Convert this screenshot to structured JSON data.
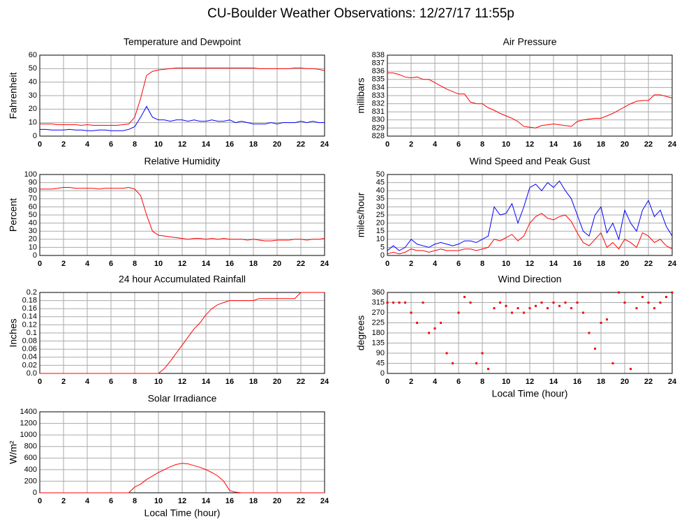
{
  "title": "CU-Boulder Weather Observations: 12/27/17 11:55p",
  "chart_data": [
    {
      "type": "line",
      "title": "Temperature and Dewpoint",
      "ylabel": "Fahrenheit",
      "x": [
        0,
        0.5,
        1,
        1.5,
        2,
        2.5,
        3,
        3.5,
        4,
        4.5,
        5,
        5.5,
        6,
        6.5,
        7,
        7.5,
        8,
        8.5,
        9,
        9.5,
        10,
        10.5,
        11,
        11.5,
        12,
        12.5,
        13,
        13.5,
        14,
        14.5,
        15,
        15.5,
        16,
        16.5,
        17,
        17.5,
        18,
        18.5,
        19,
        19.5,
        20,
        20.5,
        21,
        21.5,
        22,
        22.5,
        23,
        23.5,
        24
      ],
      "series": [
        {
          "color": "#ff0000",
          "values": [
            9,
            9,
            9,
            8.5,
            8.5,
            8.5,
            8.5,
            8,
            8.5,
            8,
            8,
            8,
            8,
            8,
            8.5,
            9,
            14,
            28,
            45,
            48,
            49,
            49.5,
            50,
            50.5,
            50.5,
            50.5,
            50.5,
            50.5,
            50.5,
            50.5,
            50.5,
            50.5,
            50.5,
            50.5,
            50.5,
            50.5,
            50.5,
            50,
            50,
            50,
            50,
            50,
            50,
            50.5,
            50.5,
            50,
            50,
            49.5,
            48.5
          ]
        },
        {
          "color": "#0000ff",
          "values": [
            5,
            5,
            4.5,
            4.5,
            4.5,
            5,
            4.5,
            4.5,
            4,
            4,
            4.5,
            4.5,
            4,
            4,
            4,
            5,
            7,
            14,
            22,
            14,
            12,
            12,
            11,
            12,
            12,
            11,
            12,
            11,
            11,
            12,
            11,
            11,
            12,
            10,
            11,
            10,
            9,
            9,
            9,
            10,
            9,
            10,
            10,
            10,
            11,
            10,
            11,
            10,
            10
          ]
        }
      ],
      "xlim": [
        0,
        24
      ],
      "xticks": [
        0,
        2,
        4,
        6,
        8,
        10,
        12,
        14,
        16,
        18,
        20,
        22,
        24
      ],
      "ylim": [
        0,
        60
      ],
      "yticks": [
        0,
        10,
        20,
        30,
        40,
        50,
        60
      ],
      "grid": true
    },
    {
      "type": "line",
      "title": "Air Pressure",
      "ylabel": "millibars",
      "x": [
        0,
        0.5,
        1,
        1.5,
        2,
        2.5,
        3,
        3.5,
        4,
        4.5,
        5,
        5.5,
        6,
        6.5,
        7,
        7.5,
        8,
        8.5,
        9,
        9.5,
        10,
        10.5,
        11,
        11.5,
        12,
        12.5,
        13,
        13.5,
        14,
        14.5,
        15,
        15.5,
        16,
        16.5,
        17,
        17.5,
        18,
        18.5,
        19,
        19.5,
        20,
        20.5,
        21,
        21.5,
        22,
        22.5,
        23,
        23.5,
        24
      ],
      "series": [
        {
          "color": "#ff0000",
          "values": [
            835.8,
            835.8,
            835.6,
            835.3,
            835.2,
            835.3,
            835,
            835,
            834.6,
            834.2,
            833.8,
            833.5,
            833.2,
            833.2,
            832.2,
            832,
            832,
            831.5,
            831.2,
            830.8,
            830.5,
            830.2,
            829.8,
            829.2,
            829.1,
            829,
            829.3,
            829.4,
            829.5,
            829.4,
            829.3,
            829.2,
            829.8,
            830,
            830.1,
            830.2,
            830.2,
            830.5,
            830.8,
            831.2,
            831.6,
            832,
            832.3,
            832.4,
            832.4,
            833.1,
            833.1,
            832.9,
            832.7
          ]
        }
      ],
      "xlim": [
        0,
        24
      ],
      "xticks": [
        0,
        2,
        4,
        6,
        8,
        10,
        12,
        14,
        16,
        18,
        20,
        22,
        24
      ],
      "ylim": [
        828,
        838
      ],
      "yticks": [
        828,
        829,
        830,
        831,
        832,
        833,
        834,
        835,
        836,
        837,
        838
      ],
      "grid": true
    },
    {
      "type": "line",
      "title": "Relative Humidity",
      "ylabel": "Percent",
      "x": [
        0,
        0.5,
        1,
        1.5,
        2,
        2.5,
        3,
        3.5,
        4,
        4.5,
        5,
        5.5,
        6,
        6.5,
        7,
        7.5,
        8,
        8.5,
        9,
        9.5,
        10,
        10.5,
        11,
        11.5,
        12,
        12.5,
        13,
        13.5,
        14,
        14.5,
        15,
        15.5,
        16,
        16.5,
        17,
        17.5,
        18,
        18.5,
        19,
        19.5,
        20,
        20.5,
        21,
        21.5,
        22,
        22.5,
        23,
        23.5,
        24
      ],
      "series": [
        {
          "color": "#ff0000",
          "values": [
            82,
            82,
            82,
            83,
            84,
            84,
            83,
            83,
            83,
            83,
            82,
            83,
            83,
            83,
            83,
            84,
            82,
            74,
            50,
            30,
            25,
            24,
            23,
            22,
            21,
            20,
            21,
            21,
            20,
            21,
            20,
            21,
            20,
            20,
            20,
            19,
            20,
            19,
            18,
            18,
            19,
            19,
            19,
            20,
            20,
            19,
            20,
            20,
            21
          ]
        }
      ],
      "xlim": [
        0,
        24
      ],
      "xticks": [
        0,
        2,
        4,
        6,
        8,
        10,
        12,
        14,
        16,
        18,
        20,
        22,
        24
      ],
      "ylim": [
        0,
        100
      ],
      "yticks": [
        0,
        10,
        20,
        30,
        40,
        50,
        60,
        70,
        80,
        90,
        100
      ],
      "grid": true
    },
    {
      "type": "line",
      "title": "Wind Speed and Peak Gust",
      "ylabel": "miles/hour",
      "x": [
        0,
        0.5,
        1,
        1.5,
        2,
        2.5,
        3,
        3.5,
        4,
        4.5,
        5,
        5.5,
        6,
        6.5,
        7,
        7.5,
        8,
        8.5,
        9,
        9.5,
        10,
        10.5,
        11,
        11.5,
        12,
        12.5,
        13,
        13.5,
        14,
        14.5,
        15,
        15.5,
        16,
        16.5,
        17,
        17.5,
        18,
        18.5,
        19,
        19.5,
        20,
        20.5,
        21,
        21.5,
        22,
        22.5,
        23,
        23.5,
        24
      ],
      "series": [
        {
          "color": "#0000ff",
          "values": [
            3,
            6,
            3,
            5,
            10,
            7,
            6,
            5,
            7,
            8,
            7,
            6,
            7,
            9,
            9,
            8,
            10,
            12,
            30,
            25,
            26,
            32,
            20,
            30,
            42,
            44,
            40,
            45,
            42,
            46,
            40,
            35,
            25,
            15,
            12,
            25,
            30,
            14,
            20,
            10,
            28,
            20,
            15,
            28,
            34,
            24,
            28,
            18,
            12
          ]
        },
        {
          "color": "#ff0000",
          "values": [
            1,
            2,
            1,
            2,
            4,
            3,
            3,
            2,
            3,
            4,
            3,
            3,
            3,
            4,
            4,
            3,
            4,
            5,
            10,
            9,
            11,
            13,
            9,
            12,
            20,
            24,
            26,
            23,
            22,
            24,
            25,
            21,
            14,
            8,
            6,
            10,
            14,
            5,
            8,
            4,
            10,
            8,
            5,
            14,
            12,
            8,
            10,
            6,
            4
          ]
        }
      ],
      "xlim": [
        0,
        24
      ],
      "xticks": [
        0,
        2,
        4,
        6,
        8,
        10,
        12,
        14,
        16,
        18,
        20,
        22,
        24
      ],
      "ylim": [
        0,
        50
      ],
      "yticks": [
        0,
        5,
        10,
        15,
        20,
        25,
        30,
        35,
        40,
        45,
        50
      ],
      "grid": true
    },
    {
      "type": "line",
      "title": "24 hour Accumulated Rainfall",
      "ylabel": "Inches",
      "x": [
        0,
        0.5,
        1,
        1.5,
        2,
        2.5,
        3,
        3.5,
        4,
        4.5,
        5,
        5.5,
        6,
        6.5,
        7,
        7.5,
        8,
        8.5,
        9,
        9.5,
        10,
        10.5,
        11,
        11.5,
        12,
        12.5,
        13,
        13.5,
        14,
        14.5,
        15,
        15.5,
        16,
        16.5,
        17,
        17.5,
        18,
        18.5,
        19,
        19.5,
        20,
        20.5,
        21,
        21.5,
        22,
        22.5,
        23,
        23.5,
        24
      ],
      "series": [
        {
          "color": "#ff0000",
          "values": [
            0,
            0,
            0,
            0,
            0,
            0,
            0,
            0,
            0,
            0,
            0,
            0,
            0,
            0,
            0,
            0,
            0,
            0,
            0,
            0,
            0,
            0.012,
            0.03,
            0.05,
            0.07,
            0.09,
            0.11,
            0.125,
            0.145,
            0.16,
            0.17,
            0.175,
            0.18,
            0.18,
            0.18,
            0.18,
            0.18,
            0.185,
            0.185,
            0.185,
            0.185,
            0.185,
            0.185,
            0.185,
            0.2,
            0.2,
            0.2,
            0.2,
            0.2
          ]
        }
      ],
      "xlim": [
        0,
        24
      ],
      "xticks": [
        0,
        2,
        4,
        6,
        8,
        10,
        12,
        14,
        16,
        18,
        20,
        22,
        24
      ],
      "ylim": [
        0,
        0.2
      ],
      "yticks": [
        {
          "value": 0,
          "label": "0.0"
        },
        0.02,
        0.04,
        0.06,
        0.08,
        0.1,
        0.12,
        0.14,
        0.16,
        0.18,
        0.2
      ],
      "grid": true
    },
    {
      "type": "scatter",
      "title": "Wind Direction",
      "ylabel": "degrees",
      "xlabel": "Local Time (hour)",
      "x": [
        0,
        0.5,
        1,
        1.5,
        2,
        2.5,
        3,
        3.5,
        4,
        4.5,
        5,
        5.5,
        6,
        6.5,
        7,
        7.5,
        8,
        8.5,
        9,
        9.5,
        10,
        10.5,
        11,
        11.5,
        12,
        12.5,
        13,
        13.5,
        14,
        14.5,
        15,
        15.5,
        16,
        16.5,
        17,
        17.5,
        18,
        18.5,
        19,
        19.5,
        20,
        20.5,
        21,
        21.5,
        22,
        22.5,
        23,
        23.5,
        24
      ],
      "series": [
        {
          "color": "#ff0000",
          "values": [
            315,
            315,
            315,
            315,
            270,
            225,
            315,
            180,
            200,
            225,
            90,
            45,
            270,
            340,
            315,
            45,
            90,
            20,
            290,
            315,
            300,
            270,
            290,
            270,
            290,
            300,
            315,
            290,
            315,
            300,
            315,
            290,
            315,
            270,
            180,
            110,
            225,
            240,
            45,
            360,
            315,
            20,
            290,
            340,
            315,
            290,
            315,
            340,
            360
          ]
        }
      ],
      "xlim": [
        0,
        24
      ],
      "xticks": [
        0,
        2,
        4,
        6,
        8,
        10,
        12,
        14,
        16,
        18,
        20,
        22,
        24
      ],
      "ylim": [
        0,
        360
      ],
      "yticks": [
        0,
        45,
        90,
        135,
        180,
        225,
        270,
        315,
        360
      ],
      "grid": true
    },
    {
      "type": "line",
      "title": "Solar Irradiance",
      "ylabel": "W/m²",
      "xlabel": "Local Time (hour)",
      "x": [
        0,
        0.5,
        1,
        1.5,
        2,
        2.5,
        3,
        3.5,
        4,
        4.5,
        5,
        5.5,
        6,
        6.5,
        7,
        7.5,
        8,
        8.5,
        9,
        9.5,
        10,
        10.5,
        11,
        11.5,
        12,
        12.5,
        13,
        13.5,
        14,
        14.5,
        15,
        15.5,
        16,
        16.5,
        17,
        17.5,
        18,
        18.5,
        19,
        19.5,
        20,
        20.5,
        21,
        21.5,
        22,
        22.5,
        23,
        23.5,
        24
      ],
      "series": [
        {
          "color": "#ff0000",
          "values": [
            0,
            0,
            0,
            0,
            0,
            0,
            0,
            0,
            0,
            0,
            0,
            0,
            0,
            0,
            0,
            0,
            100,
            150,
            230,
            290,
            350,
            400,
            450,
            490,
            510,
            500,
            470,
            440,
            400,
            350,
            290,
            200,
            40,
            10,
            0,
            0,
            0,
            0,
            0,
            0,
            0,
            0,
            0,
            0,
            0,
            0,
            0,
            0,
            0
          ]
        }
      ],
      "xlim": [
        0,
        24
      ],
      "xticks": [
        0,
        2,
        4,
        6,
        8,
        10,
        12,
        14,
        16,
        18,
        20,
        22,
        24
      ],
      "ylim": [
        0,
        1400
      ],
      "yticks": [
        0,
        200,
        400,
        600,
        800,
        1000,
        1200,
        1400
      ],
      "grid": true
    }
  ]
}
